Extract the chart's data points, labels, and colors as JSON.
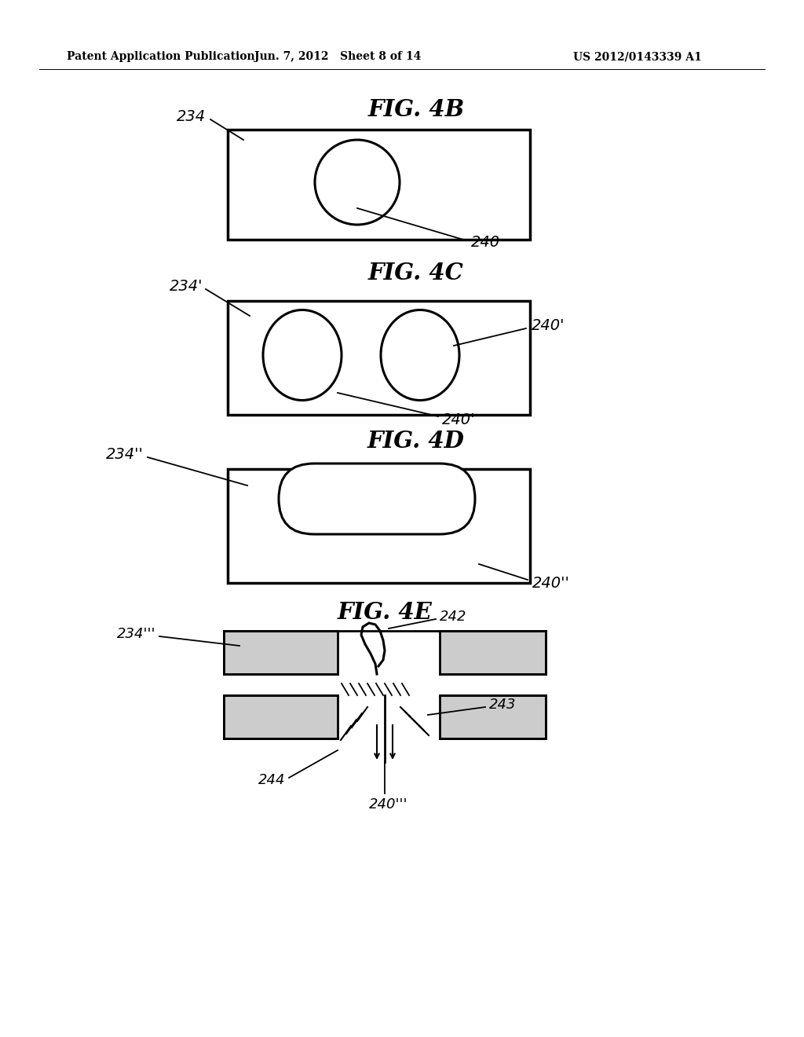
{
  "bg_color": "#ffffff",
  "header_left": "Patent Application Publication",
  "header_mid": "Jun. 7, 2012   Sheet 8 of 14",
  "header_right": "US 2012/0143339 A1"
}
